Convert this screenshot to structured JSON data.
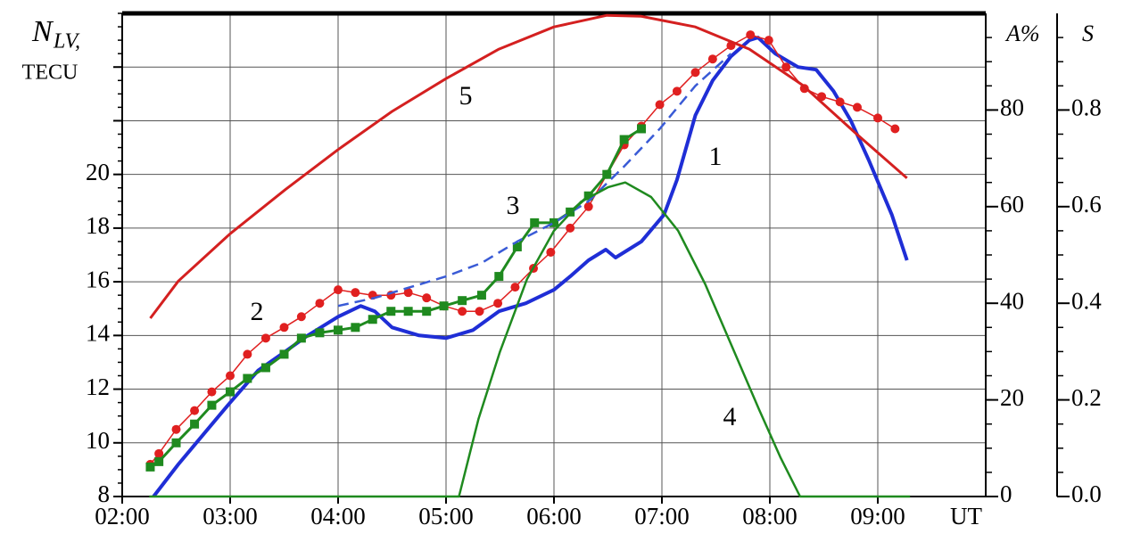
{
  "chart_data": {
    "type": "line",
    "ylabel": {
      "symbol": "N",
      "subscript": "LV,",
      "unit": "TECU"
    },
    "y2label": "A%",
    "y3label": "S",
    "xlabel": "UT",
    "xlim": [
      2,
      10
    ],
    "xticks": [
      {
        "value": 2,
        "label": "02:00"
      },
      {
        "value": 3,
        "label": "03:00"
      },
      {
        "value": 4,
        "label": "04:00"
      },
      {
        "value": 5,
        "label": "05:00"
      },
      {
        "value": 6,
        "label": "06:00"
      },
      {
        "value": 7,
        "label": "07:00"
      },
      {
        "value": 8,
        "label": "08:00"
      },
      {
        "value": 9,
        "label": "09:00"
      }
    ],
    "ylim": [
      8,
      26
    ],
    "yticks": [
      8,
      10,
      12,
      14,
      16,
      18,
      20
    ],
    "ygrid_unlabeled": [
      22,
      24
    ],
    "y2lim": [
      0,
      100
    ],
    "y2ticks": [
      0,
      20,
      40,
      60,
      80
    ],
    "y3lim": [
      0,
      1
    ],
    "y3ticks": [
      {
        "value": 0,
        "label": "0.0"
      },
      0.2,
      0.4,
      0.6,
      0.8
    ],
    "grid": true,
    "series": [
      {
        "name": "1",
        "color": "#1f2ed6",
        "axis": "y",
        "width": 4,
        "x": [
          2.29,
          2.52,
          2.77,
          3.0,
          3.26,
          3.51,
          3.72,
          4.0,
          4.21,
          4.34,
          4.5,
          4.75,
          5.0,
          5.25,
          5.49,
          5.74,
          6.0,
          6.15,
          6.32,
          6.48,
          6.57,
          6.69,
          6.81,
          7.02,
          7.14,
          7.31,
          7.47,
          7.64,
          7.81,
          7.89,
          8.05,
          8.26,
          8.43,
          8.59,
          8.75,
          8.92,
          9.13,
          9.27
        ],
        "values": [
          8.0,
          9.2,
          10.4,
          11.5,
          12.7,
          13.4,
          14.0,
          14.7,
          15.1,
          14.9,
          14.3,
          14.0,
          13.9,
          14.2,
          14.9,
          15.2,
          15.7,
          16.2,
          16.8,
          17.2,
          16.9,
          17.2,
          17.5,
          18.5,
          19.8,
          22.2,
          23.5,
          24.4,
          25.0,
          25.1,
          24.5,
          24.0,
          23.9,
          23.1,
          22.0,
          20.5,
          18.5,
          16.8
        ]
      },
      {
        "name": "2",
        "color": "#e02020",
        "axis": "y",
        "width": 1.5,
        "marker": "circle",
        "x": [
          2.26,
          2.34,
          2.5,
          2.67,
          2.83,
          3.0,
          3.16,
          3.33,
          3.5,
          3.66,
          3.83,
          4.0,
          4.16,
          4.32,
          4.49,
          4.65,
          4.82,
          4.98,
          5.15,
          5.31,
          5.48,
          5.64,
          5.81,
          5.97,
          6.15,
          6.32,
          6.49,
          6.65,
          6.81,
          6.98,
          7.14,
          7.31,
          7.47,
          7.64,
          7.82,
          7.99,
          8.15,
          8.32,
          8.48,
          8.65,
          8.81,
          9.0,
          9.16
        ],
        "values": [
          9.2,
          9.6,
          10.5,
          11.2,
          11.9,
          12.5,
          13.3,
          13.9,
          14.3,
          14.7,
          15.2,
          15.7,
          15.6,
          15.5,
          15.5,
          15.6,
          15.4,
          15.1,
          14.9,
          14.9,
          15.2,
          15.8,
          16.5,
          17.1,
          18.0,
          18.8,
          20.0,
          21.1,
          21.8,
          22.6,
          23.1,
          23.8,
          24.3,
          24.8,
          25.2,
          25.0,
          24.0,
          23.2,
          22.9,
          22.7,
          22.5,
          22.1,
          21.7
        ]
      },
      {
        "name": "3",
        "color": "#1f8a1f",
        "axis": "y",
        "width": 3,
        "marker": "square",
        "x": [
          2.26,
          2.34,
          2.5,
          2.67,
          2.83,
          3.0,
          3.16,
          3.33,
          3.5,
          3.66,
          3.83,
          4.0,
          4.16,
          4.32,
          4.49,
          4.65,
          4.82,
          4.98,
          5.15,
          5.33,
          5.49,
          5.66,
          5.82,
          6.0,
          6.15,
          6.32,
          6.49,
          6.65,
          6.81
        ],
        "values": [
          9.1,
          9.3,
          10.0,
          10.7,
          11.4,
          11.9,
          12.4,
          12.8,
          13.3,
          13.9,
          14.1,
          14.2,
          14.3,
          14.6,
          14.9,
          14.9,
          14.9,
          15.1,
          15.3,
          15.5,
          16.2,
          17.3,
          18.2,
          18.2,
          18.6,
          19.2,
          20.0,
          21.3,
          21.7
        ]
      },
      {
        "color": "#3a5bd6",
        "axis": "y",
        "width": 2.5,
        "dashed": true,
        "x": [
          4.0,
          4.34,
          4.67,
          5.0,
          5.33,
          5.66,
          6.0,
          6.32,
          6.65,
          6.98,
          7.31,
          7.64
        ],
        "values": [
          15.1,
          15.4,
          15.8,
          16.2,
          16.7,
          17.5,
          18.2,
          19.0,
          20.3,
          21.7,
          23.3,
          24.5
        ]
      },
      {
        "name": "4",
        "color": "#1f8a1f",
        "axis": "y2",
        "width": 2.5,
        "x": [
          2.25,
          5.12,
          5.3,
          5.5,
          5.75,
          6.0,
          6.25,
          6.5,
          6.66,
          6.9,
          7.15,
          7.4,
          7.65,
          7.9,
          8.1,
          8.28,
          9.3
        ],
        "values": [
          0,
          0,
          16,
          30,
          45,
          55,
          61,
          64,
          65,
          62,
          55,
          44,
          31,
          18,
          8,
          0,
          0
        ]
      },
      {
        "name": "5",
        "color": "#d42020",
        "axis": "y3",
        "width": 3,
        "x": [
          2.26,
          2.52,
          3.0,
          3.51,
          4.0,
          4.5,
          5.0,
          5.49,
          6.0,
          6.49,
          6.81,
          7.31,
          7.81,
          8.3,
          8.8,
          9.27
        ],
        "values": [
          0.369,
          0.446,
          0.544,
          0.635,
          0.718,
          0.797,
          0.865,
          0.926,
          0.972,
          0.996,
          0.994,
          0.972,
          0.926,
          0.852,
          0.751,
          0.659
        ]
      }
    ]
  }
}
